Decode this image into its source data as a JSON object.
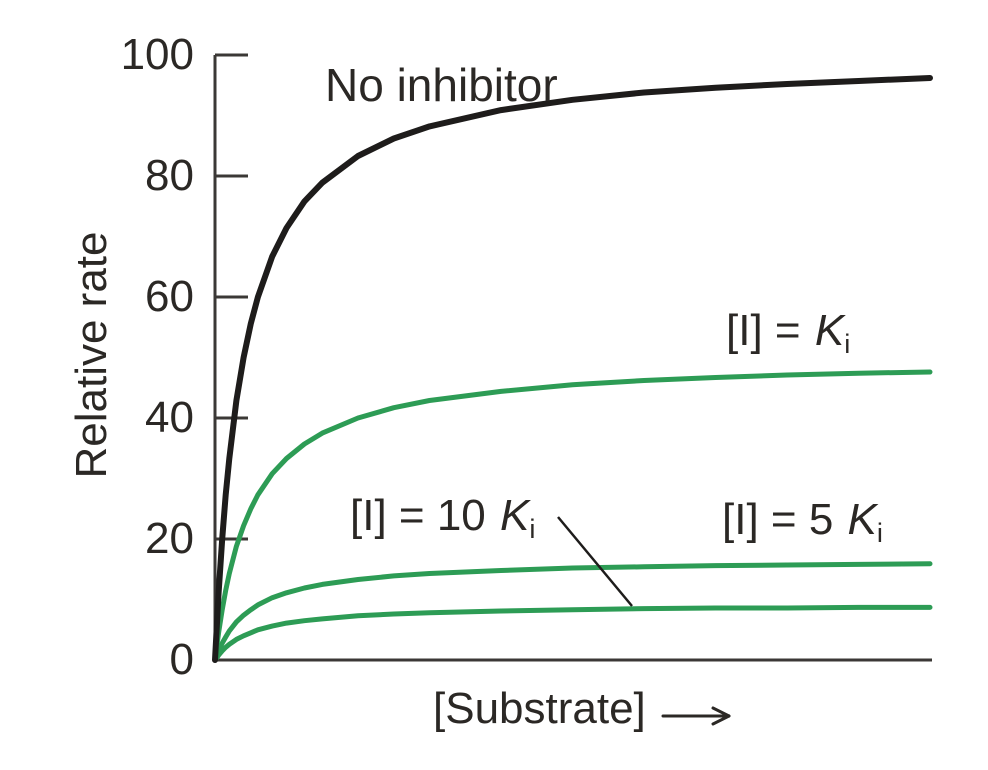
{
  "colors": {
    "curve_black": "#1e1c1b",
    "curve_green": "#2d9c55",
    "axis": "#3b3836",
    "text": "#2b2825"
  },
  "chart_data": {
    "type": "line",
    "title": "",
    "ylabel": "Relative rate",
    "xlabel": "[Substrate]",
    "x_axis": {
      "min": 0,
      "max": 1,
      "tick_labels": [],
      "arrow_on_label": true
    },
    "y_axis": {
      "min": 0,
      "max": 100,
      "ticks": [
        0,
        20,
        40,
        60,
        80,
        100
      ]
    },
    "grid": false,
    "legend_position": "inline-curve-labels",
    "x": [
      0,
      0.005,
      0.01,
      0.015,
      0.02,
      0.03,
      0.04,
      0.05,
      0.06,
      0.08,
      0.1,
      0.125,
      0.15,
      0.2,
      0.25,
      0.3,
      0.4,
      0.5,
      0.6,
      0.7,
      0.8,
      0.9,
      1.0
    ],
    "series": [
      {
        "key": "ki",
        "name": "[I] = Ki",
        "color_key": "curve_green",
        "plateau": 47.6,
        "values": [
          0,
          4.5,
          8.3,
          11.5,
          14.3,
          18.8,
          22.2,
          25,
          27.3,
          30.8,
          33.3,
          35.7,
          37.5,
          40,
          41.7,
          42.9,
          44.4,
          45.5,
          46.2,
          46.7,
          47.1,
          47.4,
          47.6
        ]
      },
      {
        "key": "ki5",
        "name": "[I] = 5 Ki",
        "color_key": "curve_green",
        "plateau": 15.9,
        "values": [
          0,
          1.5,
          2.8,
          3.8,
          4.8,
          6.3,
          7.4,
          8.3,
          9.1,
          10.3,
          11.1,
          11.9,
          12.5,
          13.3,
          13.9,
          14.3,
          14.8,
          15.2,
          15.4,
          15.6,
          15.7,
          15.8,
          15.9
        ]
      },
      {
        "key": "ki10",
        "name": "[I] = 10 Ki",
        "color_key": "curve_green",
        "plateau": 8.7,
        "values": [
          0,
          0.8,
          1.5,
          2.1,
          2.6,
          3.4,
          4.0,
          4.5,
          5.0,
          5.6,
          6.1,
          6.5,
          6.8,
          7.3,
          7.6,
          7.8,
          8.1,
          8.3,
          8.5,
          8.6,
          8.6,
          8.7,
          8.7
        ]
      },
      {
        "key": "no-inhibitor",
        "name": "No inhibitor",
        "color_key": "curve_black",
        "plateau": 96.2,
        "values": [
          0,
          11.1,
          20,
          27.3,
          33.3,
          42.9,
          50,
          55.6,
          60,
          66.7,
          71.4,
          75.8,
          78.9,
          83.3,
          86.2,
          88.2,
          90.9,
          92.6,
          93.8,
          94.6,
          95.2,
          95.7,
          96.2
        ]
      }
    ],
    "labels": {
      "no_inhibitor": {
        "text": "No inhibitor"
      },
      "ki": {
        "prefix": "[I] = ",
        "symbol": "K",
        "subscript": "i"
      },
      "ki5": {
        "prefix": "[I] = 5 ",
        "symbol": "K",
        "subscript": "i"
      },
      "ki10": {
        "prefix": "[I] = 10 ",
        "symbol": "K",
        "subscript": "i"
      }
    }
  }
}
